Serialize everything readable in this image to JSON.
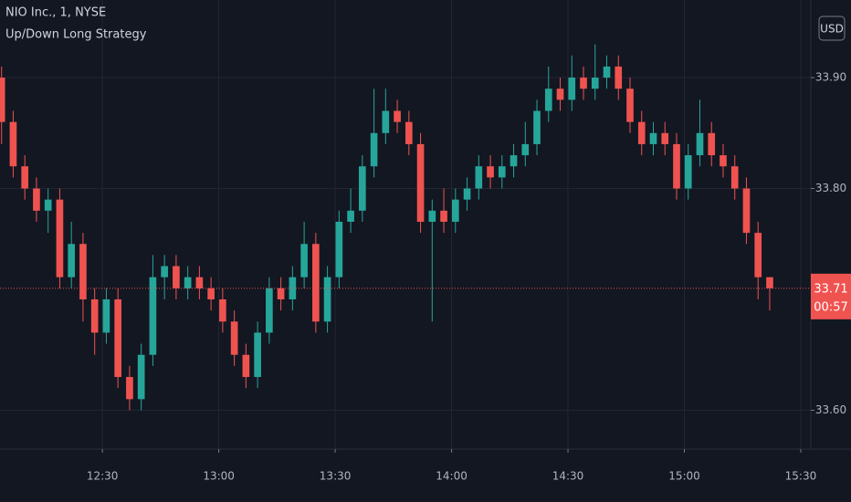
{
  "chart_data": {
    "type": "candlestick",
    "title": "NIO Inc., 1, NYSE",
    "subtitle": "Up/Down Long Strategy",
    "currency": "USD",
    "up_color": "#26a69a",
    "down_color": "#ef5350",
    "grid": true,
    "x": [
      724,
      727,
      730,
      733,
      736,
      739,
      742,
      745,
      748,
      751,
      754,
      757,
      760,
      763,
      766,
      769,
      772,
      775,
      778,
      781,
      784,
      787,
      790,
      793,
      796,
      799,
      802,
      805,
      808,
      811,
      814,
      817,
      820,
      823,
      826,
      829,
      832,
      835,
      838,
      841,
      844,
      847,
      850,
      853,
      856,
      859,
      862,
      865,
      868,
      871,
      874,
      877,
      880,
      883,
      886,
      889,
      892,
      895,
      898,
      901,
      904,
      907,
      910,
      913,
      916,
      919,
      922
    ],
    "open": [
      33.9,
      33.86,
      33.82,
      33.8,
      33.78,
      33.79,
      33.72,
      33.75,
      33.7,
      33.67,
      33.7,
      33.63,
      33.61,
      33.65,
      33.72,
      33.73,
      33.71,
      33.72,
      33.71,
      33.7,
      33.68,
      33.65,
      33.63,
      33.67,
      33.71,
      33.7,
      33.72,
      33.75,
      33.68,
      33.72,
      33.77,
      33.78,
      33.82,
      33.85,
      33.87,
      33.86,
      33.84,
      33.77,
      33.78,
      33.77,
      33.79,
      33.8,
      33.82,
      33.81,
      33.82,
      33.83,
      33.84,
      33.87,
      33.89,
      33.88,
      33.9,
      33.89,
      33.9,
      33.91,
      33.89,
      33.86,
      33.84,
      33.85,
      33.84,
      33.8,
      33.83,
      33.85,
      33.83,
      33.82,
      33.8,
      33.76,
      33.72
    ],
    "high": [
      33.91,
      33.87,
      33.83,
      33.81,
      33.8,
      33.8,
      33.77,
      33.76,
      33.71,
      33.71,
      33.71,
      33.64,
      33.66,
      33.74,
      33.74,
      33.74,
      33.73,
      33.73,
      33.72,
      33.71,
      33.69,
      33.66,
      33.68,
      33.72,
      33.72,
      33.73,
      33.77,
      33.76,
      33.73,
      33.78,
      33.8,
      33.83,
      33.89,
      33.89,
      33.88,
      33.87,
      33.85,
      33.79,
      33.8,
      33.8,
      33.81,
      33.83,
      33.83,
      33.83,
      33.84,
      33.86,
      33.88,
      33.91,
      33.9,
      33.92,
      33.91,
      33.93,
      33.92,
      33.92,
      33.9,
      33.87,
      33.86,
      33.86,
      33.85,
      33.84,
      33.88,
      33.86,
      33.84,
      33.83,
      33.81,
      33.77,
      33.72
    ],
    "low": [
      33.84,
      33.81,
      33.79,
      33.77,
      33.76,
      33.71,
      33.71,
      33.68,
      33.65,
      33.66,
      33.62,
      33.6,
      33.6,
      33.64,
      33.7,
      33.7,
      33.7,
      33.7,
      33.69,
      33.67,
      33.64,
      33.62,
      33.62,
      33.66,
      33.69,
      33.69,
      33.71,
      33.67,
      33.67,
      33.71,
      33.76,
      33.77,
      33.81,
      33.84,
      33.85,
      33.83,
      33.76,
      33.68,
      33.76,
      33.76,
      33.78,
      33.79,
      33.8,
      33.8,
      33.81,
      33.82,
      33.83,
      33.86,
      33.87,
      33.87,
      33.88,
      33.88,
      33.89,
      33.88,
      33.85,
      33.83,
      33.83,
      33.83,
      33.79,
      33.79,
      33.82,
      33.82,
      33.81,
      33.79,
      33.75,
      33.7,
      33.69
    ],
    "close": [
      33.86,
      33.82,
      33.8,
      33.78,
      33.79,
      33.72,
      33.75,
      33.7,
      33.67,
      33.7,
      33.63,
      33.61,
      33.65,
      33.72,
      33.73,
      33.71,
      33.72,
      33.71,
      33.7,
      33.68,
      33.65,
      33.63,
      33.67,
      33.71,
      33.7,
      33.72,
      33.75,
      33.68,
      33.72,
      33.77,
      33.78,
      33.82,
      33.85,
      33.87,
      33.86,
      33.84,
      33.77,
      33.78,
      33.77,
      33.79,
      33.8,
      33.82,
      33.81,
      33.82,
      33.83,
      33.84,
      33.87,
      33.89,
      33.88,
      33.9,
      33.89,
      33.9,
      33.91,
      33.89,
      33.86,
      33.84,
      33.85,
      33.84,
      33.8,
      33.83,
      33.85,
      33.83,
      33.82,
      33.8,
      33.76,
      33.72,
      33.71
    ],
    "xlim": [
      723.6,
      932.6
    ],
    "xticks": [
      {
        "value": 750,
        "label": "12:30"
      },
      {
        "value": 780,
        "label": "13:00"
      },
      {
        "value": 810,
        "label": "13:30"
      },
      {
        "value": 840,
        "label": "14:00"
      },
      {
        "value": 870,
        "label": "14:30"
      },
      {
        "value": 900,
        "label": "15:00"
      },
      {
        "value": 930,
        "label": "15:30"
      }
    ],
    "ylim": [
      33.565,
      33.97
    ],
    "yticks": [
      {
        "value": 33.6,
        "label": "33.60"
      },
      {
        "value": 33.8,
        "label": "33.80"
      },
      {
        "value": 33.9,
        "label": "33.90"
      }
    ],
    "last_price": 33.71,
    "countdown": "00:57"
  }
}
